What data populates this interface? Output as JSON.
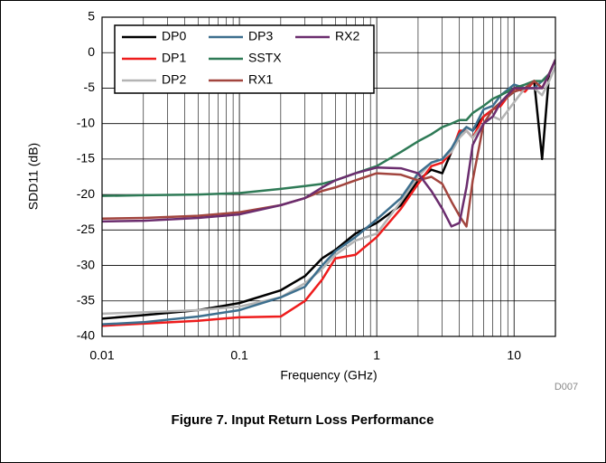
{
  "chart_data": {
    "type": "line",
    "x_label": "Frequency (GHz)",
    "y_label": "SDD11 (dB)",
    "annotation": "D007",
    "caption": "Figure 7. Input Return Loss Performance",
    "xscale": "log",
    "grid": true,
    "legend": "upper left",
    "xlim": [
      0.01,
      20
    ],
    "xticks": [
      0.01,
      0.1,
      1,
      10
    ],
    "ylim": [
      -40,
      5
    ],
    "yticks": [
      -40,
      -35,
      -30,
      -25,
      -20,
      -15,
      -10,
      -5,
      0,
      5
    ],
    "x": [
      0.01,
      0.02,
      0.05,
      0.1,
      0.2,
      0.3,
      0.4,
      0.5,
      0.7,
      1,
      1.5,
      2,
      2.5,
      3,
      3.5,
      4,
      4.5,
      5,
      6,
      7,
      8,
      10,
      12,
      14,
      16,
      18,
      20
    ],
    "series": [
      {
        "name": "DP0",
        "color": "#000000",
        "values": [
          -37.5,
          -37,
          -36.3,
          -35.3,
          -33.5,
          -31.5,
          -29,
          -27.8,
          -25.5,
          -24,
          -21.5,
          -18,
          -16.5,
          -17,
          -14,
          -11.5,
          -10.5,
          -11,
          -9,
          -8,
          -7,
          -5.5,
          -5,
          -4,
          -15,
          -3,
          -1
        ]
      },
      {
        "name": "DP1",
        "color": "#ee1c1c",
        "values": [
          -38.5,
          -38.2,
          -37.8,
          -37.3,
          -37.2,
          -35,
          -32,
          -29,
          -28.5,
          -26,
          -22,
          -18.5,
          -16,
          -15.5,
          -14,
          -11,
          -11,
          -12,
          -9,
          -8,
          -7.5,
          -5,
          -5.5,
          -4,
          -5,
          -3,
          -1
        ]
      },
      {
        "name": "DP2",
        "color": "#b4b4b4",
        "values": [
          -36.8,
          -36.6,
          -36.3,
          -35.8,
          -34.5,
          -32.5,
          -30.5,
          -28.5,
          -26.5,
          -25.5,
          -21,
          -17.5,
          -15.5,
          -15,
          -14,
          -12,
          -11,
          -12,
          -10,
          -9,
          -9.5,
          -7,
          -5,
          -5,
          -6,
          -4,
          -2
        ]
      },
      {
        "name": "DP3",
        "color": "#3d6f8e",
        "values": [
          -38.3,
          -38,
          -37.2,
          -36.3,
          -34.5,
          -33,
          -30,
          -28,
          -26,
          -23.5,
          -20.5,
          -17,
          -15.5,
          -15,
          -13.5,
          -11.5,
          -10.5,
          -11,
          -8,
          -7.5,
          -6,
          -4.5,
          -5,
          -5,
          -4,
          -3,
          -1
        ]
      },
      {
        "name": "SSTX",
        "color": "#2e7a56",
        "values": [
          -20.2,
          -20.1,
          -20,
          -19.8,
          -19.2,
          -18.8,
          -18.5,
          -18,
          -17,
          -16,
          -14,
          -12.5,
          -11.5,
          -10.5,
          -10,
          -9.5,
          -9.5,
          -8.5,
          -7.5,
          -6.5,
          -6,
          -5,
          -4.5,
          -4,
          -4,
          -3,
          -1
        ]
      },
      {
        "name": "RX1",
        "color": "#a2453e",
        "values": [
          -23.4,
          -23.3,
          -23,
          -22.5,
          -21.5,
          -20.5,
          -19.5,
          -19,
          -18,
          -17,
          -17.2,
          -18,
          -17.5,
          -18.5,
          -21,
          -23,
          -24.5,
          -18,
          -10,
          -8,
          -7,
          -5.5,
          -5,
          -4,
          -5,
          -3,
          -1
        ]
      },
      {
        "name": "RX2",
        "color": "#6b2d6e",
        "values": [
          -23.8,
          -23.7,
          -23.3,
          -22.8,
          -21.5,
          -20.5,
          -19,
          -18,
          -17,
          -16.2,
          -16.3,
          -17,
          -19.5,
          -22,
          -24.5,
          -24,
          -19,
          -13,
          -10,
          -9,
          -7,
          -5,
          -5,
          -5,
          -5,
          -3,
          -1
        ]
      }
    ]
  }
}
